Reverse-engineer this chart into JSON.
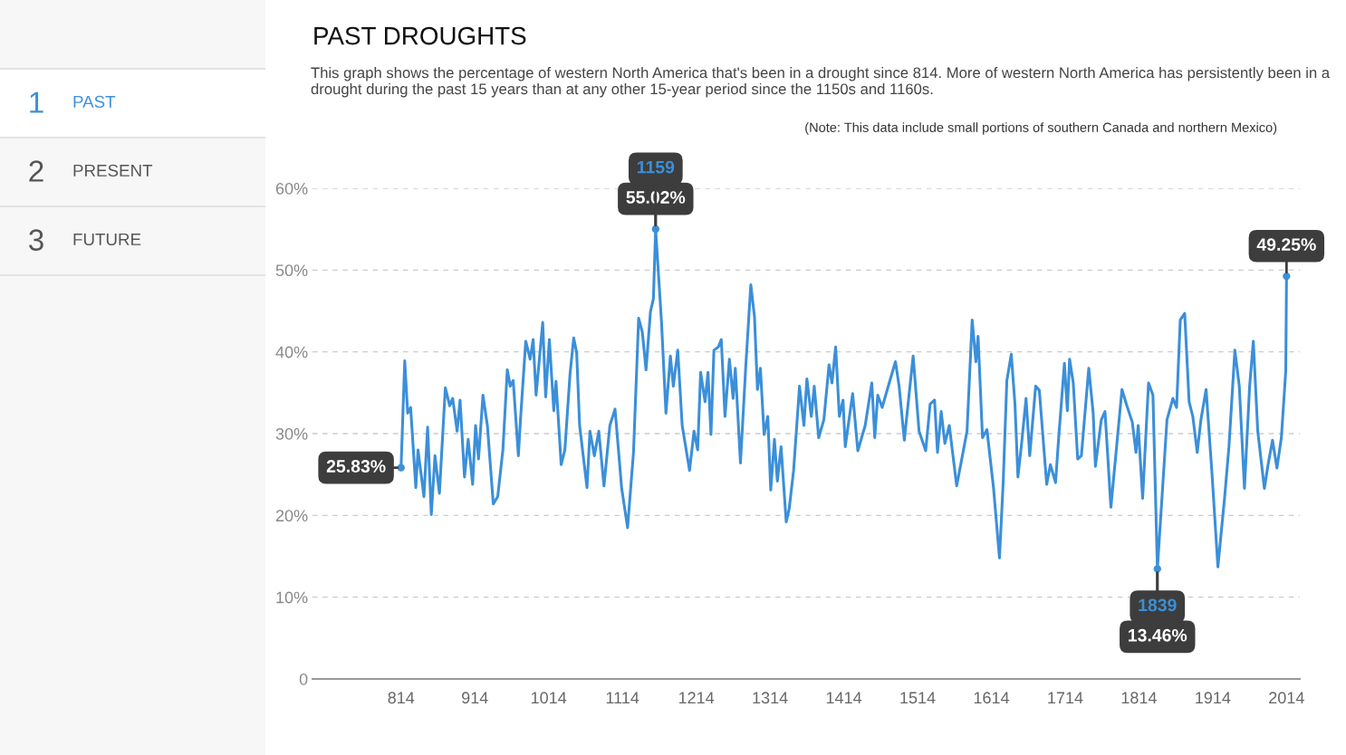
{
  "chart_data": {
    "type": "line",
    "title": "PAST DROUGHTS",
    "subtitle": "This graph shows the percentage of western North America that's been in a drought since 814. More of western North America has persistently been in a drought during the past 15 years than at any other 15-year period since the 1150s and 1160s.",
    "annotations": [
      "(Note: This data include small portions of southern Canada and northern Mexico)",
      "1",
      "PAST",
      "2",
      "PRESENT",
      "3",
      "FUTURE",
      {
        "text": "25.83%",
        "x": 814,
        "y": 25.83
      },
      {
        "text": "1159",
        "x": 1159,
        "y": 55.02
      },
      {
        "text": "55.02%",
        "x": 1159,
        "y": 55.02
      },
      {
        "text": "1839",
        "x": 1839,
        "y": 13.46
      },
      {
        "text": "13.46%",
        "x": 1839,
        "y": 13.46
      },
      {
        "text": "49.25%",
        "x": 2014,
        "y": 49.25
      }
    ],
    "series": [
      {
        "color": "#3b8fd9",
        "x": [
          814,
          819,
          823,
          827,
          834,
          837,
          845,
          850,
          855,
          860,
          866,
          874,
          880,
          884,
          890,
          894,
          900,
          905,
          911,
          915,
          919,
          925,
          931,
          939,
          945,
          952,
          958,
          962,
          966,
          973,
          976,
          983,
          989,
          993,
          997,
          1006,
          1010,
          1015,
          1021,
          1024,
          1031,
          1036,
          1043,
          1048,
          1052,
          1056,
          1066,
          1070,
          1076,
          1082,
          1089,
          1097,
          1104,
          1113,
          1121,
          1129,
          1136,
          1141,
          1146,
          1152,
          1156,
          1159,
          1167,
          1173,
          1179,
          1183,
          1189,
          1195,
          1205,
          1211,
          1216,
          1220,
          1226,
          1230,
          1234,
          1238,
          1244,
          1248,
          1253,
          1259,
          1264,
          1267,
          1274,
          1281,
          1288,
          1293,
          1297,
          1301,
          1306,
          1311,
          1315,
          1320,
          1324,
          1329,
          1336,
          1340,
          1346,
          1354,
          1360,
          1364,
          1370,
          1374,
          1380,
          1387,
          1394,
          1398,
          1403,
          1408,
          1413,
          1416,
          1426,
          1433,
          1443,
          1452,
          1456,
          1460,
          1466,
          1473,
          1484,
          1489,
          1496,
          1508,
          1516,
          1525,
          1531,
          1537,
          1541,
          1546,
          1551,
          1557,
          1567,
          1581,
          1588,
          1593,
          1596,
          1602,
          1608,
          1617,
          1625,
          1630,
          1635,
          1641,
          1646,
          1650,
          1655,
          1661,
          1666,
          1674,
          1679,
          1689,
          1694,
          1701,
          1705,
          1713,
          1717,
          1720,
          1725,
          1731,
          1736,
          1746,
          1752,
          1755,
          1763,
          1768,
          1776,
          1781,
          1791,
          1797,
          1805,
          1810,
          1813,
          1819,
          1827,
          1833,
          1839,
          1852,
          1860,
          1865,
          1870,
          1876,
          1882,
          1887,
          1893,
          1898,
          1905,
          1913,
          1921,
          1930,
          1936,
          1944,
          1950,
          1957,
          1964,
          1969,
          1975,
          1984,
          1989,
          1995,
          2001,
          2007,
          2013,
          2014
        ],
        "values": [
          25.83,
          38.9,
          32.5,
          33.2,
          23.4,
          28.0,
          22.3,
          30.8,
          20.1,
          27.3,
          22.7,
          35.6,
          33.4,
          34.3,
          30.3,
          34.1,
          24.7,
          29.3,
          23.8,
          31.0,
          26.9,
          34.7,
          31.0,
          21.4,
          22.3,
          28.0,
          37.8,
          35.8,
          36.5,
          27.3,
          31.9,
          41.3,
          39.1,
          41.5,
          34.7,
          43.6,
          34.5,
          41.5,
          32.8,
          36.4,
          26.2,
          28.0,
          37.3,
          41.7,
          39.9,
          31.0,
          23.4,
          30.3,
          27.3,
          30.3,
          23.6,
          31.0,
          33.0,
          23.3,
          18.5,
          27.7,
          44.1,
          42.4,
          37.8,
          44.9,
          46.5,
          55.02,
          43.6,
          32.5,
          39.5,
          35.8,
          40.2,
          31.0,
          25.5,
          30.3,
          28.0,
          37.5,
          33.9,
          37.5,
          29.9,
          40.2,
          40.6,
          41.5,
          32.1,
          39.1,
          34.3,
          38.0,
          26.4,
          38.0,
          48.2,
          44.3,
          35.4,
          38.0,
          29.9,
          32.1,
          23.1,
          29.3,
          24.2,
          28.4,
          19.2,
          20.8,
          25.5,
          35.8,
          31.0,
          36.7,
          32.1,
          35.8,
          29.5,
          31.7,
          38.4,
          36.2,
          40.6,
          32.1,
          34.1,
          28.4,
          34.9,
          27.9,
          31.0,
          36.2,
          29.5,
          34.7,
          33.2,
          35.4,
          38.8,
          35.8,
          29.2,
          39.5,
          30.3,
          27.9,
          33.6,
          34.1,
          27.7,
          32.7,
          28.8,
          31.0,
          23.6,
          30.3,
          43.9,
          38.8,
          41.9,
          29.5,
          30.5,
          23.3,
          14.8,
          24.0,
          36.5,
          39.7,
          33.6,
          24.7,
          28.8,
          34.3,
          27.3,
          35.8,
          35.3,
          23.8,
          26.2,
          24.0,
          29.2,
          38.6,
          32.8,
          39.1,
          36.2,
          26.9,
          27.3,
          38.0,
          32.5,
          26.0,
          31.7,
          32.7,
          21.0,
          25.8,
          35.4,
          33.6,
          31.4,
          27.7,
          31.0,
          22.1,
          36.2,
          34.7,
          13.46,
          31.7,
          34.3,
          33.2,
          43.9,
          44.7,
          33.9,
          32.1,
          27.7,
          31.7,
          35.4,
          25.1,
          13.7,
          22.1,
          28.4,
          40.2,
          35.8,
          23.3,
          35.8,
          41.3,
          30.3,
          23.3,
          26.2,
          29.2,
          25.8,
          29.5,
          37.7,
          49.25
        ]
      }
    ],
    "xlim": [
      694,
      2032
    ],
    "xticks": [
      814,
      914,
      1014,
      1114,
      1214,
      1314,
      1414,
      1514,
      1614,
      1714,
      1814,
      1914,
      2014
    ],
    "ylim": [
      0,
      60
    ],
    "yticks": [
      0,
      {
        "value": 10,
        "label": "10%"
      },
      {
        "value": 20,
        "label": "20%"
      },
      {
        "value": 30,
        "label": "30%"
      },
      {
        "value": 40,
        "label": "40%"
      },
      {
        "value": 50,
        "label": "50%"
      },
      {
        "value": 60,
        "label": "60%"
      }
    ],
    "grid": "y",
    "marker": "none",
    "line_style": "solid"
  }
}
